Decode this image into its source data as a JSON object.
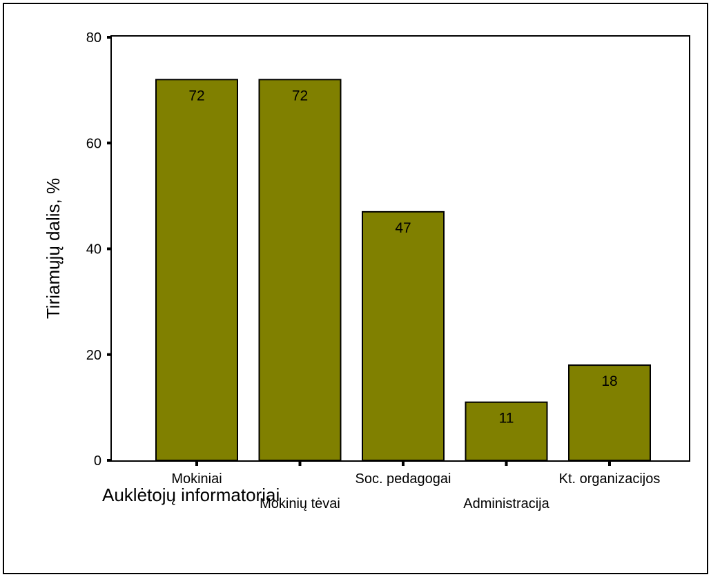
{
  "chart_data": {
    "type": "bar",
    "title": "",
    "xlabel": "Auklėtojų informatoriai",
    "ylabel": "Tiriamųjų dalis, %",
    "categories": [
      "Mokiniai",
      "Mokinių tėvai",
      "Soc. pedagogai",
      "Administracija",
      "Kt. organizacijos"
    ],
    "values": [
      72,
      72,
      47,
      11,
      18
    ],
    "data_labels": [
      "72",
      "72",
      "47",
      "11",
      "18"
    ],
    "yticks": [
      0,
      20,
      40,
      60,
      80
    ],
    "ytick_labels": [
      "0",
      "20",
      "40",
      "60",
      "80"
    ],
    "ylim": [
      0,
      80
    ],
    "bar_color": "#808000",
    "grid": false,
    "legend": "none"
  }
}
